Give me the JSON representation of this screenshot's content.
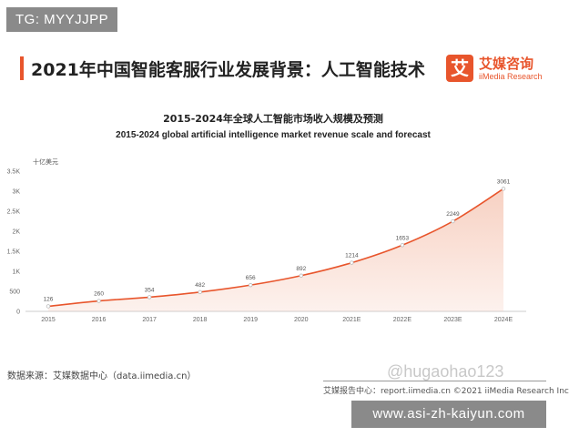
{
  "tag_label": "TG: MYYJJPP",
  "page_title": "2021年中国智能客服行业发展背景：人工智能技术",
  "logo": {
    "mark": "艾",
    "name_cn": "艾媒咨询",
    "name_en": "iiMedia Research"
  },
  "chart_data": {
    "type": "area",
    "title": "2015-2024年全球人工智能市场收入规模及预测",
    "subtitle": "2015-2024 global artificial intelligence market revenue scale and forecast",
    "ylabel": "十亿美元",
    "xlabel": "",
    "categories": [
      "2015",
      "2016",
      "2017",
      "2018",
      "2019",
      "2020",
      "2021E",
      "2022E",
      "2023E",
      "2024E"
    ],
    "values": [
      126,
      260,
      354,
      482,
      656,
      892,
      1214,
      1653,
      2249,
      3061
    ],
    "value_labels": [
      "126",
      "260",
      "354",
      "482",
      "656",
      "892",
      "1214",
      "1653",
      "2249",
      "3061"
    ],
    "ylim": [
      0,
      3500
    ],
    "yticks": [
      0,
      500,
      1000,
      1500,
      2000,
      2500,
      3000,
      3500
    ],
    "ytick_labels": [
      "0",
      "500",
      "1K",
      "1.5K",
      "2K",
      "2.5K",
      "3K",
      "3.5K"
    ],
    "grid": false,
    "line_color": "#e8552c",
    "fill_color": "#f6c9b8"
  },
  "source_text": "数据来源：艾媒数据中心（data.iimedia.cn）",
  "watermark_text": "@hugaohao123",
  "footer_text": "艾媒报告中心：report.iimedia.cn  ©2021  iiMedia Research Inc",
  "url_banner": "www.asi-zh-kaiyun.com"
}
